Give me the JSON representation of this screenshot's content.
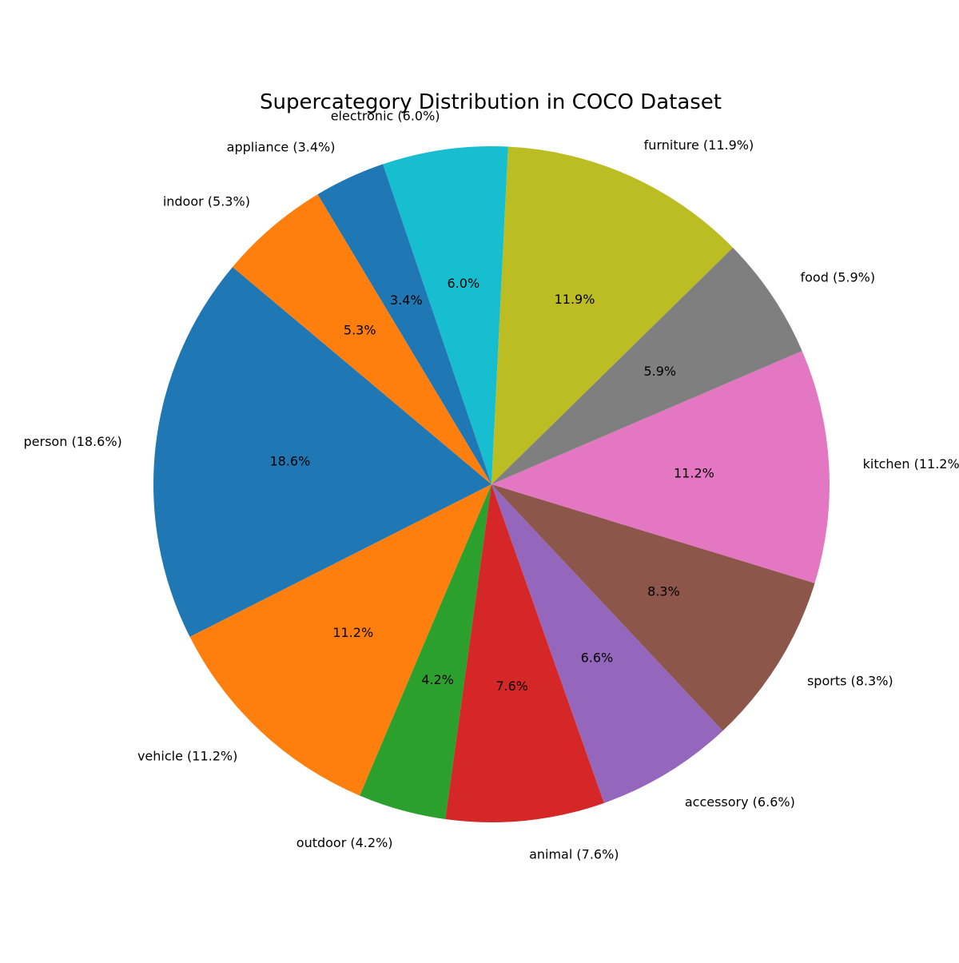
{
  "chart_data": {
    "type": "pie",
    "title": "Supercategory Distribution in COCO Dataset",
    "start_angle_deg": 140,
    "direction": "counterclockwise",
    "slices": [
      {
        "name": "person",
        "value": 18.6,
        "label": "person (18.6%)",
        "pct_label": "18.6%",
        "color": "#1f77b4"
      },
      {
        "name": "vehicle",
        "value": 11.2,
        "label": "vehicle (11.2%)",
        "pct_label": "11.2%",
        "color": "#ff7f0e"
      },
      {
        "name": "outdoor",
        "value": 4.2,
        "label": "outdoor (4.2%)",
        "pct_label": "4.2%",
        "color": "#2ca02c"
      },
      {
        "name": "animal",
        "value": 7.6,
        "label": "animal (7.6%)",
        "pct_label": "7.6%",
        "color": "#d62728"
      },
      {
        "name": "accessory",
        "value": 6.6,
        "label": "accessory (6.6%)",
        "pct_label": "6.6%",
        "color": "#9467bd"
      },
      {
        "name": "sports",
        "value": 8.3,
        "label": "sports (8.3%)",
        "pct_label": "8.3%",
        "color": "#8c564b"
      },
      {
        "name": "kitchen",
        "value": 11.2,
        "label": "kitchen (11.2%)",
        "pct_label": "11.2%",
        "color": "#e377c2"
      },
      {
        "name": "food",
        "value": 5.9,
        "label": "food (5.9%)",
        "pct_label": "5.9%",
        "color": "#7f7f7f"
      },
      {
        "name": "furniture",
        "value": 11.9,
        "label": "furniture (11.9%)",
        "pct_label": "11.9%",
        "color": "#bcbd22"
      },
      {
        "name": "electronic",
        "value": 6.0,
        "label": "electronic (6.0%)",
        "pct_label": "6.0%",
        "color": "#17becf"
      },
      {
        "name": "appliance",
        "value": 3.4,
        "label": "appliance (3.4%)",
        "pct_label": "3.4%",
        "color": "#1f77b4"
      },
      {
        "name": "indoor",
        "value": 5.3,
        "label": "indoor (5.3%)",
        "pct_label": "5.3%",
        "color": "#ff7f0e"
      }
    ]
  }
}
